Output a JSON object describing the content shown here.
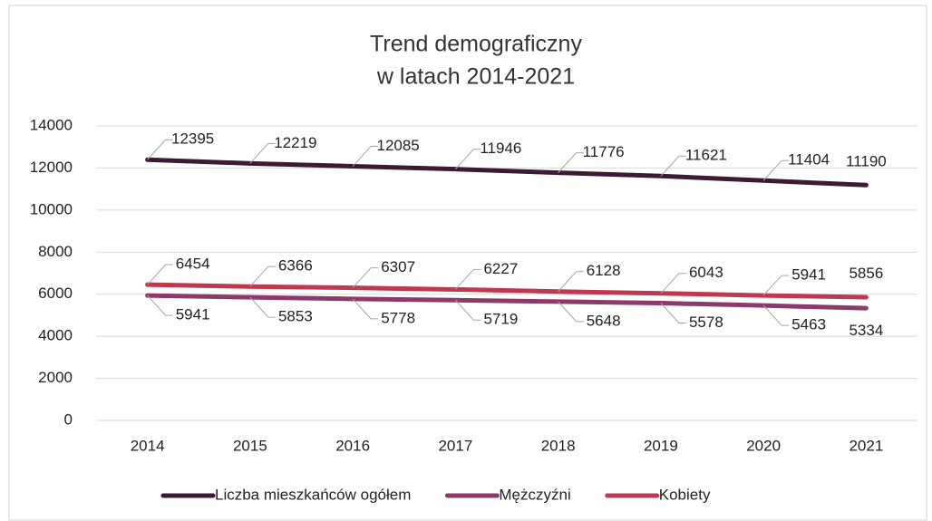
{
  "chart_data": {
    "type": "line",
    "title": [
      "Trend demograficzny",
      "w latach 2014-2021"
    ],
    "categories": [
      "2014",
      "2015",
      "2016",
      "2017",
      "2018",
      "2019",
      "2020",
      "2021"
    ],
    "series": [
      {
        "name": "Liczba mieszkańców ogółem",
        "color": "#3d1a33",
        "values": [
          12395,
          12219,
          12085,
          11946,
          11776,
          11621,
          11404,
          11190
        ]
      },
      {
        "name": "Mężczyźni",
        "color": "#8c3a6c",
        "values": [
          5941,
          5853,
          5778,
          5719,
          5648,
          5578,
          5463,
          5334
        ]
      },
      {
        "name": "Kobiety",
        "color": "#c0384f",
        "values": [
          6454,
          6366,
          6307,
          6227,
          6128,
          6043,
          5941,
          5856
        ]
      }
    ],
    "ylim": [
      0,
      14000
    ],
    "yticks": [
      0,
      2000,
      4000,
      6000,
      8000,
      10000,
      12000,
      14000
    ],
    "grid": true,
    "legend": "bottom"
  }
}
